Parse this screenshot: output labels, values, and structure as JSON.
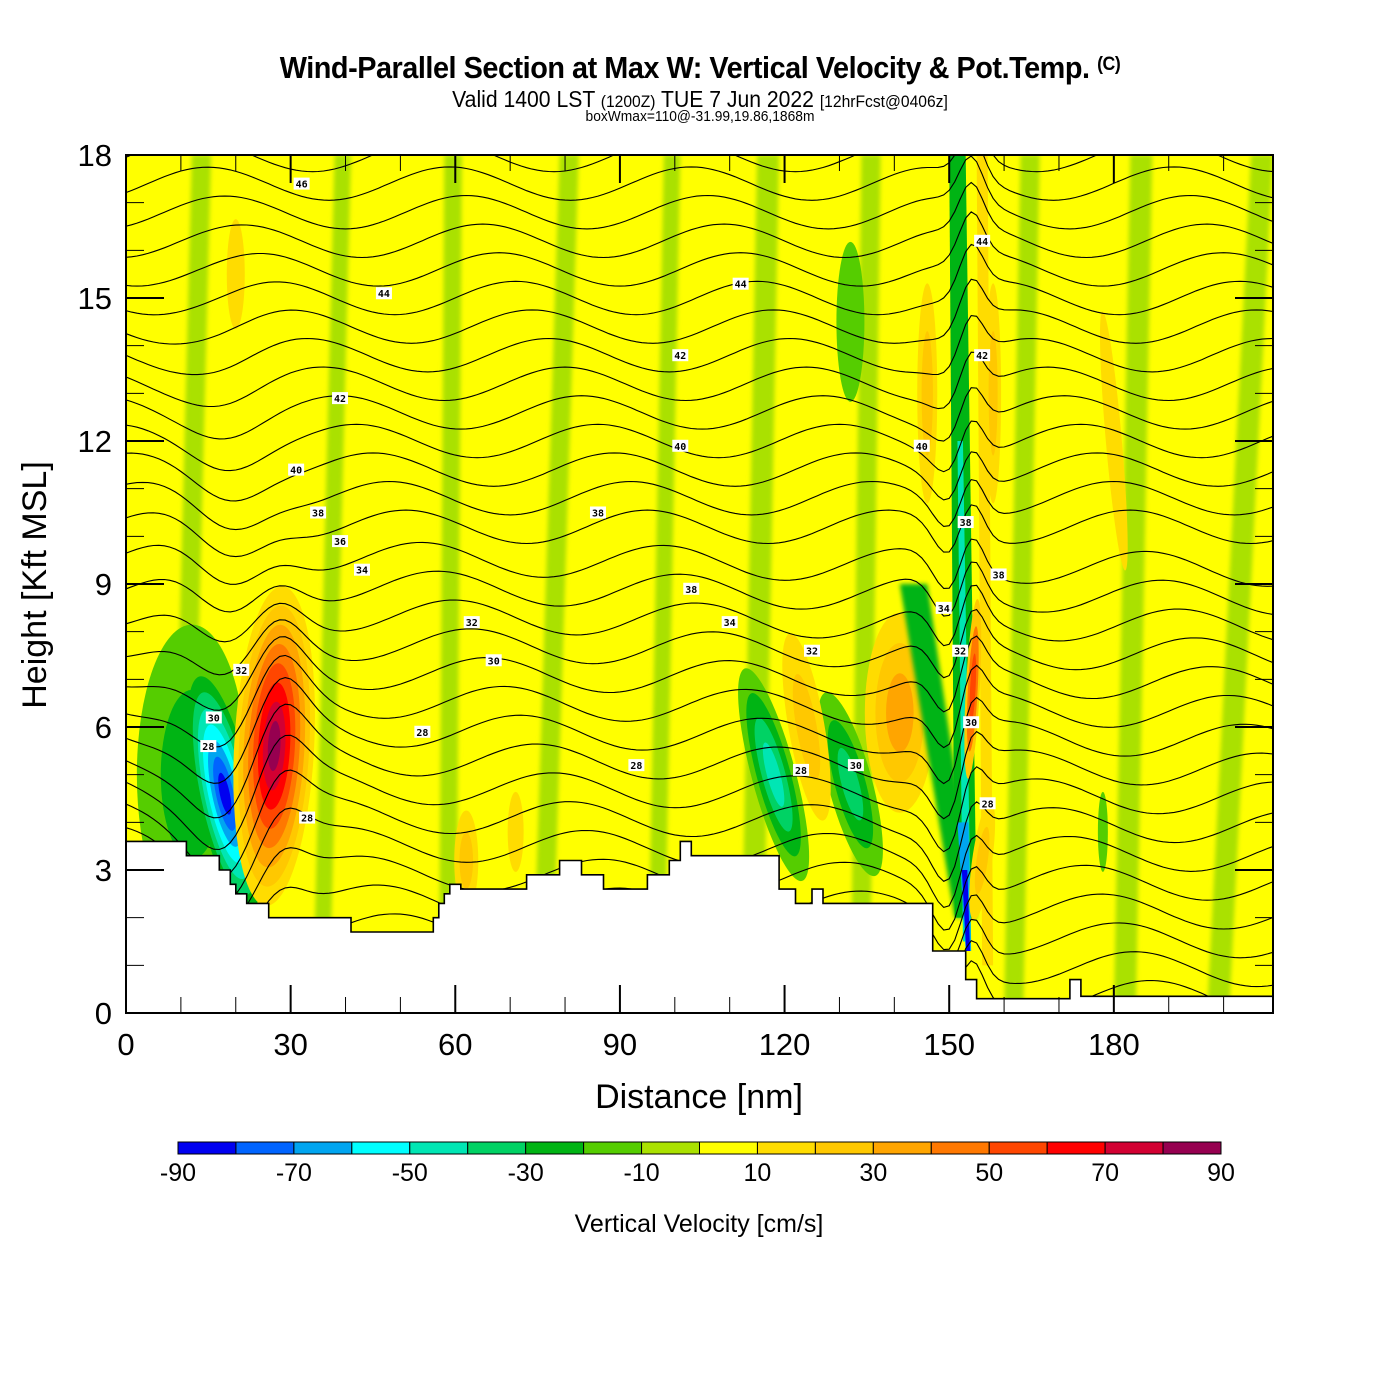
{
  "header": {
    "title": "Wind-Parallel Section at Max W: Vertical Velocity & Pot.Temp.",
    "copyright": "(C)",
    "valid_prefix": "Valid 1400 LST",
    "valid_utc": "(1200Z)",
    "valid_date": "TUE 7 Jun 2022",
    "forecast": "[12hrFcst@0406z]",
    "box_info": "boxWmax=110@-31.99,19.86,1868m"
  },
  "chart_data": {
    "type": "heatmap",
    "title": "Wind-Parallel Section at Max W: Vertical Velocity & Pot.Temp.",
    "subtitle": "Valid 1400 LST (1200Z) TUE 7 Jun 2022 [12hrFcst@0406z]",
    "annotation": "boxWmax=110@-31.99,19.86,1868m",
    "xlabel": "Distance [nm]",
    "ylabel": "Height [Kft MSL]",
    "xlim": [
      0,
      209
    ],
    "ylim": [
      0,
      18
    ],
    "x_ticks": [
      0,
      30,
      60,
      90,
      120,
      150,
      180
    ],
    "x_minor_step": 10,
    "y_ticks": [
      0,
      3,
      6,
      9,
      12,
      15,
      18
    ],
    "y_minor_step": 1,
    "colorbar": {
      "title": "Vertical Velocity [cm/s]",
      "bounds": [
        -90,
        -80,
        -70,
        -60,
        -50,
        -40,
        -30,
        -20,
        -10,
        0,
        10,
        20,
        30,
        40,
        50,
        60,
        70,
        80,
        90
      ],
      "tick_labels": [
        "-90",
        "-70",
        "-50",
        "-30",
        "-10",
        "10",
        "30",
        "50",
        "70",
        "90"
      ],
      "colors": [
        "#0000f0",
        "#0064ff",
        "#00a5f0",
        "#00ffff",
        "#00e6b4",
        "#00d264",
        "#00b414",
        "#55cd00",
        "#aae100",
        "#ffff00",
        "#ffdc00",
        "#ffc800",
        "#ffa500",
        "#ff7800",
        "#ff4600",
        "#ff0000",
        "#d20032",
        "#960050"
      ]
    },
    "contour_field": "Potential Temperature",
    "contour_interval": 1,
    "contour_labels": [
      {
        "value": "46",
        "x": 32,
        "y": 17.4
      },
      {
        "value": "44",
        "x": 47,
        "y": 15.1
      },
      {
        "value": "44",
        "x": 112,
        "y": 15.3
      },
      {
        "value": "44",
        "x": 156,
        "y": 16.2
      },
      {
        "value": "42",
        "x": 39,
        "y": 12.9
      },
      {
        "value": "42",
        "x": 101,
        "y": 13.8
      },
      {
        "value": "42",
        "x": 156,
        "y": 13.8
      },
      {
        "value": "40",
        "x": 31,
        "y": 11.4
      },
      {
        "value": "40",
        "x": 101,
        "y": 11.9
      },
      {
        "value": "40",
        "x": 145,
        "y": 11.9
      },
      {
        "value": "38",
        "x": 35,
        "y": 10.5
      },
      {
        "value": "38",
        "x": 86,
        "y": 10.5
      },
      {
        "value": "38",
        "x": 103,
        "y": 8.9
      },
      {
        "value": "38",
        "x": 153,
        "y": 10.3
      },
      {
        "value": "38",
        "x": 159,
        "y": 9.2
      },
      {
        "value": "36",
        "x": 39,
        "y": 9.9
      },
      {
        "value": "34",
        "x": 43,
        "y": 9.3
      },
      {
        "value": "34",
        "x": 110,
        "y": 8.2
      },
      {
        "value": "34",
        "x": 149,
        "y": 8.5
      },
      {
        "value": "32",
        "x": 63,
        "y": 8.2
      },
      {
        "value": "32",
        "x": 21,
        "y": 7.2
      },
      {
        "value": "32",
        "x": 125,
        "y": 7.6
      },
      {
        "value": "32",
        "x": 152,
        "y": 7.6
      },
      {
        "value": "30",
        "x": 67,
        "y": 7.4
      },
      {
        "value": "30",
        "x": 16,
        "y": 6.2
      },
      {
        "value": "30",
        "x": 133,
        "y": 5.2
      },
      {
        "value": "30",
        "x": 154,
        "y": 6.1
      },
      {
        "value": "28",
        "x": 54,
        "y": 5.9
      },
      {
        "value": "28",
        "x": 15,
        "y": 5.6
      },
      {
        "value": "28",
        "x": 33,
        "y": 4.1
      },
      {
        "value": "28",
        "x": 93,
        "y": 5.2
      },
      {
        "value": "28",
        "x": 123,
        "y": 5.1
      },
      {
        "value": "28",
        "x": 157,
        "y": 4.4
      }
    ],
    "features": [
      {
        "name": "downdraft",
        "x": 17,
        "y": 4.5,
        "w_min": -90
      },
      {
        "name": "updraft",
        "x": 27,
        "y": 5.0,
        "w_max": 90
      },
      {
        "name": "downdraft",
        "x": 153,
        "y": 2.5,
        "w_min": -80
      },
      {
        "name": "updraft",
        "x": 154,
        "y": 7.0,
        "w_max": 60
      },
      {
        "name": "updraft",
        "x": 141,
        "y": 6.3,
        "w_max": 30
      },
      {
        "name": "downdraft",
        "x": 118,
        "y": 5.0,
        "w_min": -50
      }
    ],
    "terrain_kft": {
      "x": [
        0,
        11,
        11,
        17,
        17,
        19,
        19,
        20,
        20,
        22,
        22,
        26,
        26,
        41,
        41,
        56,
        56,
        57,
        57,
        58,
        58,
        59,
        59,
        61,
        61,
        73,
        73,
        79,
        79,
        83,
        83,
        87,
        87,
        95,
        95,
        99,
        99,
        101,
        101,
        103,
        103,
        119,
        119,
        122,
        122,
        125,
        125,
        127,
        127,
        147,
        147,
        152,
        152,
        153,
        153,
        155,
        155,
        172,
        172,
        174,
        174,
        181,
        181,
        209
      ],
      "y": [
        3.6,
        3.6,
        3.3,
        3.3,
        3.0,
        3.0,
        2.7,
        2.7,
        2.5,
        2.5,
        2.3,
        2.3,
        2.0,
        2.0,
        1.7,
        1.7,
        2.0,
        2.0,
        2.3,
        2.3,
        2.5,
        2.5,
        2.7,
        2.7,
        2.6,
        2.6,
        2.9,
        2.9,
        3.2,
        3.2,
        2.9,
        2.9,
        2.6,
        2.6,
        2.9,
        2.9,
        3.2,
        3.2,
        3.6,
        3.6,
        3.3,
        3.3,
        2.6,
        2.6,
        2.3,
        2.3,
        2.6,
        2.6,
        2.3,
        2.3,
        1.3,
        1.3,
        1.3,
        1.3,
        0.7,
        0.7,
        0.3,
        0.3,
        0.7,
        0.7,
        0.35,
        0.35,
        0.35,
        0.35
      ]
    }
  }
}
